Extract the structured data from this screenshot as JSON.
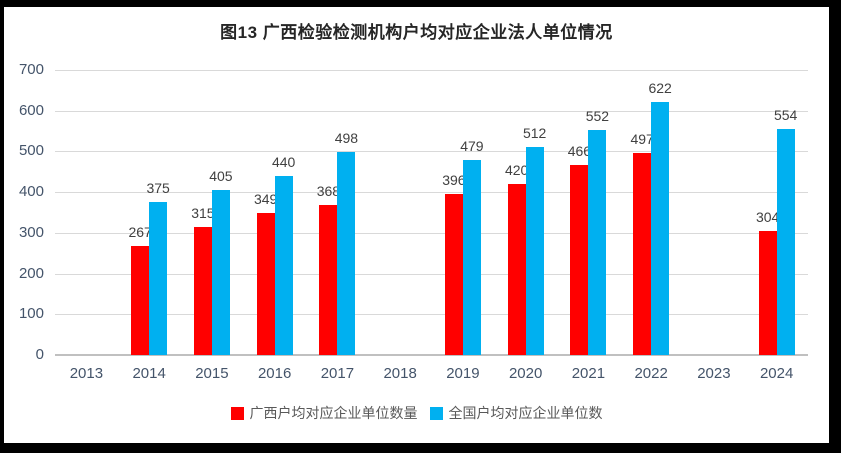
{
  "chart_data": {
    "type": "bar",
    "title": "图13 广西检验检测机构户均对应企业法人单位情况",
    "categories": [
      "2013",
      "2014",
      "2015",
      "2016",
      "2017",
      "2018",
      "2019",
      "2020",
      "2021",
      "2022",
      "2023",
      "2024"
    ],
    "series": [
      {
        "name": "广西户均对应企业单位数量",
        "color": "#FF0000",
        "values": [
          null,
          267,
          315,
          349,
          368,
          null,
          396,
          420,
          466,
          497,
          null,
          304
        ]
      },
      {
        "name": "全国户均对应企业单位数",
        "color": "#00B0F0",
        "values": [
          null,
          375,
          405,
          440,
          498,
          null,
          479,
          512,
          552,
          622,
          null,
          554
        ]
      }
    ],
    "xlabel": "",
    "ylabel": "",
    "ylim": [
      0,
      700
    ],
    "yticks": [
      0,
      100,
      200,
      300,
      400,
      500,
      600,
      700
    ],
    "grid": "horizontal",
    "legend_position": "bottom",
    "data_labels": true
  },
  "colors": {
    "grid": "#D9D9D9",
    "baseline": "#C0C0C0",
    "tick_label": "#44546A",
    "data_label": "#404040",
    "legend_text": "#595959",
    "title": "#262626",
    "frame": "#000000",
    "background": "#FFFFFF"
  }
}
